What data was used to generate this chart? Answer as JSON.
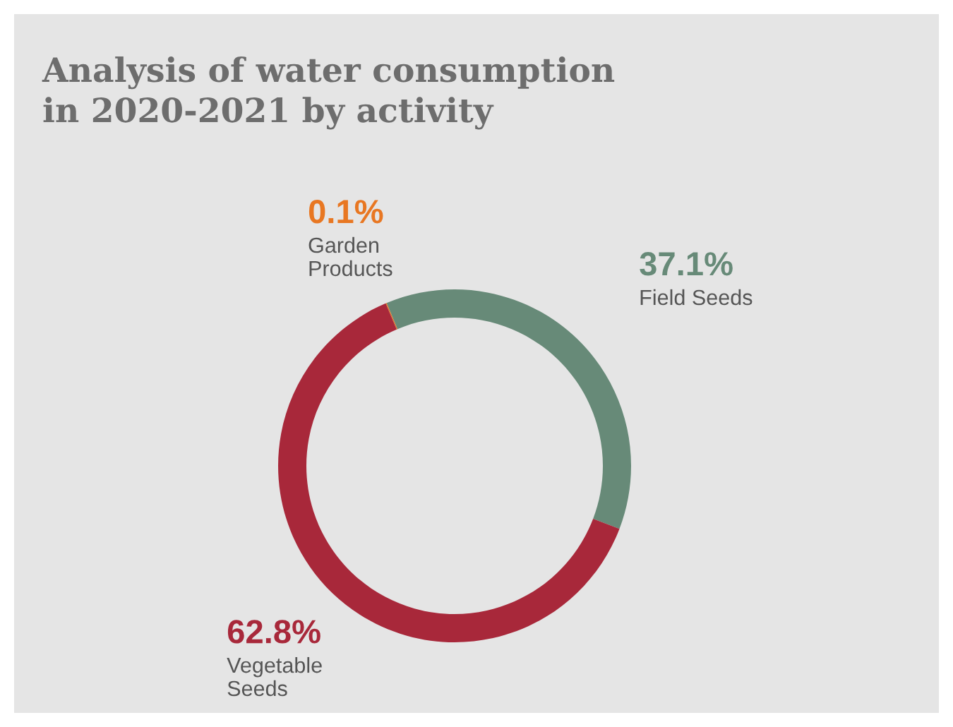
{
  "chart_data": {
    "type": "donut",
    "title": "Analysis of water consumption\nin 2020-2021 by activity",
    "categories": [
      "Garden\nProducts",
      "Field Seeds",
      "Vegetable\nSeeds"
    ],
    "values": [
      0.1,
      37.1,
      62.8
    ],
    "colors": [
      "#e87722",
      "#678a78",
      "#a8283a"
    ],
    "value_labels": [
      "0.1%",
      "37.1%",
      "62.8%"
    ],
    "legend": false
  }
}
